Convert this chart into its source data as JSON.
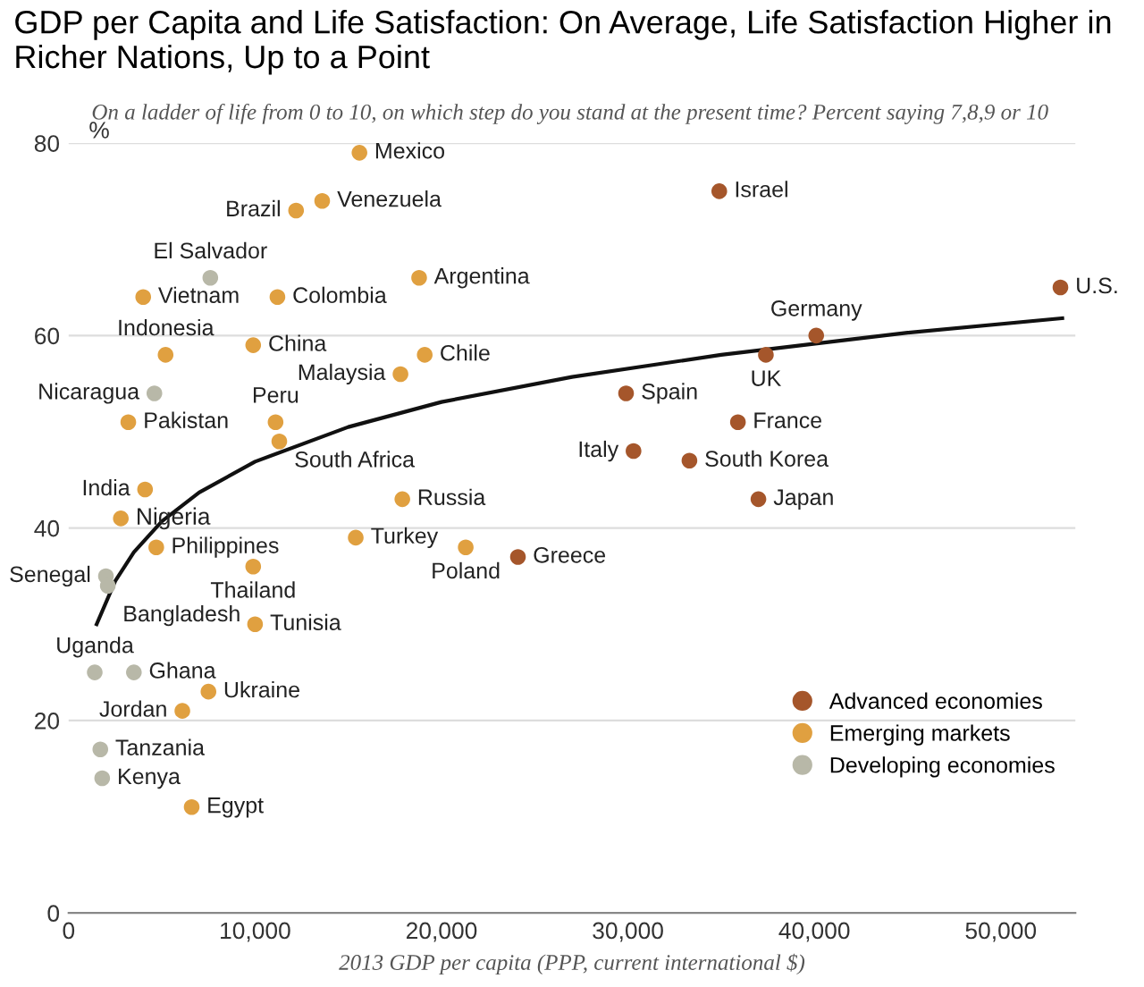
{
  "chart_data": {
    "type": "scatter",
    "title": "GDP per Capita and Life Satisfaction: On Average, Life Satisfaction Higher in Richer Nations, Up to a Point",
    "subtitle": "On a ladder of life from 0 to 10, on which step do you stand at the present time? Percent saying 7,8,9 or 10",
    "xlabel": "2013 GDP per capita (PPP, current international $)",
    "ylabel": "%",
    "xlim": [
      0,
      54000
    ],
    "ylim": [
      0,
      80
    ],
    "xticks": [
      0,
      {
        "value": 10000,
        "label": "10,000"
      },
      {
        "value": 20000,
        "label": "20,000"
      },
      {
        "value": 30000,
        "label": "30,000"
      },
      {
        "value": 40000,
        "label": "40,000"
      },
      {
        "value": 50000,
        "label": "50,000"
      }
    ],
    "yticks": [
      0,
      20,
      40,
      60,
      80
    ],
    "grid": "y",
    "legend": "bottom right",
    "marker": "circle",
    "series": [
      {
        "name": "Advanced economies",
        "color": "#a5562b",
        "x": [
          34900,
          53200,
          40100,
          37400,
          29900,
          35900,
          30300,
          33300,
          37000,
          24100
        ],
        "values": [
          75,
          65,
          60,
          58,
          54,
          51,
          48,
          47,
          43,
          37
        ]
      },
      {
        "name": "Emerging markets",
        "color": "#e0a040",
        "x": [
          15600,
          13600,
          12200,
          4000,
          11200,
          18800,
          9900,
          5200,
          19100,
          17800,
          3200,
          11100,
          11300,
          4100,
          17900,
          2800,
          4700,
          9900,
          15400,
          21300,
          10000,
          7500,
          6100,
          6600
        ],
        "values": [
          79,
          74,
          73,
          64,
          64,
          66,
          59,
          58,
          58,
          56,
          51,
          51,
          49,
          44,
          43,
          41,
          38,
          36,
          39,
          38,
          30,
          23,
          21,
          11
        ]
      },
      {
        "name": "Developing economies",
        "color": "#b8b8a8",
        "x": [
          7600,
          4600,
          2000,
          2100,
          1400,
          3500,
          1700,
          1800
        ],
        "values": [
          66,
          54,
          35,
          34,
          25,
          25,
          17,
          14
        ]
      },
      {
        "type": "line",
        "color": "#111111",
        "marker": "none",
        "x": [
          1500,
          2500,
          3500,
          5000,
          7000,
          10000,
          15000,
          20000,
          27000,
          35000,
          45000,
          53300
        ],
        "values": [
          30,
          34.5,
          37.5,
          40.7,
          43.7,
          46.9,
          50.5,
          53.1,
          55.7,
          58,
          60.3,
          61.8
        ]
      }
    ],
    "annotations": [
      {
        "text": "Israel",
        "x": 34900,
        "y": 75
      },
      {
        "text": "U.S.",
        "x": 53200,
        "y": 65
      },
      {
        "text": "Germany",
        "x": 40100,
        "y": 60
      },
      {
        "text": "UK",
        "x": 37400,
        "y": 58
      },
      {
        "text": "Spain",
        "x": 29900,
        "y": 54
      },
      {
        "text": "France",
        "x": 35900,
        "y": 51
      },
      {
        "text": "Italy",
        "x": 30300,
        "y": 48
      },
      {
        "text": "South Korea",
        "x": 33300,
        "y": 47
      },
      {
        "text": "Japan",
        "x": 37000,
        "y": 43
      },
      {
        "text": "Greece",
        "x": 24100,
        "y": 37
      },
      {
        "text": "Mexico",
        "x": 15600,
        "y": 79
      },
      {
        "text": "Venezuela",
        "x": 13600,
        "y": 74
      },
      {
        "text": "Brazil",
        "x": 12200,
        "y": 73
      },
      {
        "text": "Vietnam",
        "x": 4000,
        "y": 64
      },
      {
        "text": "Colombia",
        "x": 11200,
        "y": 64
      },
      {
        "text": "Argentina",
        "x": 18800,
        "y": 66
      },
      {
        "text": "China",
        "x": 9900,
        "y": 59
      },
      {
        "text": "Indonesia",
        "x": 5200,
        "y": 58
      },
      {
        "text": "Chile",
        "x": 19100,
        "y": 58
      },
      {
        "text": "Malaysia",
        "x": 17800,
        "y": 56
      },
      {
        "text": "Pakistan",
        "x": 3200,
        "y": 51
      },
      {
        "text": "Peru",
        "x": 11100,
        "y": 51
      },
      {
        "text": "South Africa",
        "x": 11300,
        "y": 49
      },
      {
        "text": "India",
        "x": 4100,
        "y": 44
      },
      {
        "text": "Russia",
        "x": 17900,
        "y": 43
      },
      {
        "text": "Nigeria",
        "x": 2800,
        "y": 41
      },
      {
        "text": "Philippines",
        "x": 4700,
        "y": 38
      },
      {
        "text": "Thailand",
        "x": 9900,
        "y": 36
      },
      {
        "text": "Turkey",
        "x": 15400,
        "y": 39
      },
      {
        "text": "Poland",
        "x": 21300,
        "y": 38
      },
      {
        "text": "Tunisia",
        "x": 10000,
        "y": 30
      },
      {
        "text": "Ukraine",
        "x": 7500,
        "y": 23
      },
      {
        "text": "Jordan",
        "x": 6100,
        "y": 21
      },
      {
        "text": "Egypt",
        "x": 6600,
        "y": 11
      },
      {
        "text": "El Salvador",
        "x": 7600,
        "y": 66
      },
      {
        "text": "Nicaragua",
        "x": 4600,
        "y": 54
      },
      {
        "text": "Senegal",
        "x": 2000,
        "y": 35
      },
      {
        "text": "Bangladesh",
        "x": 2100,
        "y": 34
      },
      {
        "text": "Uganda",
        "x": 1400,
        "y": 25
      },
      {
        "text": "Ghana",
        "x": 3500,
        "y": 25
      },
      {
        "text": "Tanzania",
        "x": 1700,
        "y": 17
      },
      {
        "text": "Kenya",
        "x": 1800,
        "y": 14
      }
    ]
  }
}
